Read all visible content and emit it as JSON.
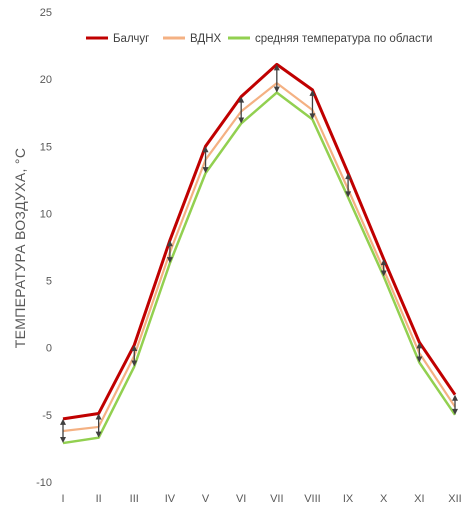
{
  "chart_data": {
    "type": "line",
    "categories": [
      "I",
      "II",
      "III",
      "IV",
      "V",
      "VI",
      "VII",
      "VIII",
      "IX",
      "X",
      "XI",
      "XII"
    ],
    "series": [
      {
        "name": "Балчуг",
        "color": "#c00000",
        "values": [
          -5.3,
          -4.9,
          0.2,
          8.0,
          15.0,
          18.7,
          21.1,
          19.2,
          13.0,
          6.6,
          0.4,
          -3.5
        ]
      },
      {
        "name": "ВДНХ",
        "color": "#f4b183",
        "values": [
          -6.2,
          -5.9,
          -0.6,
          7.1,
          14.0,
          17.6,
          19.7,
          17.7,
          11.8,
          5.8,
          -0.4,
          -4.4
        ]
      },
      {
        "name": "средняя температура по области",
        "color": "#92d050",
        "values": [
          -7.1,
          -6.7,
          -1.4,
          6.3,
          13.0,
          16.7,
          19.0,
          17.0,
          11.2,
          5.3,
          -1.1,
          -5.0
        ]
      }
    ],
    "ylabel": "ТЕМПЕРАТУРА ВОЗДУХА, °С",
    "ylim": [
      -10,
      25
    ],
    "yticks": [
      "25",
      "20",
      "15",
      "10",
      "5",
      "0",
      "-5",
      "-10"
    ],
    "ytick_values": [
      25,
      20,
      15,
      10,
      5,
      0,
      -5,
      -10
    ],
    "grid": false,
    "legend_position": "top-right",
    "arrow_color": "#404040"
  }
}
